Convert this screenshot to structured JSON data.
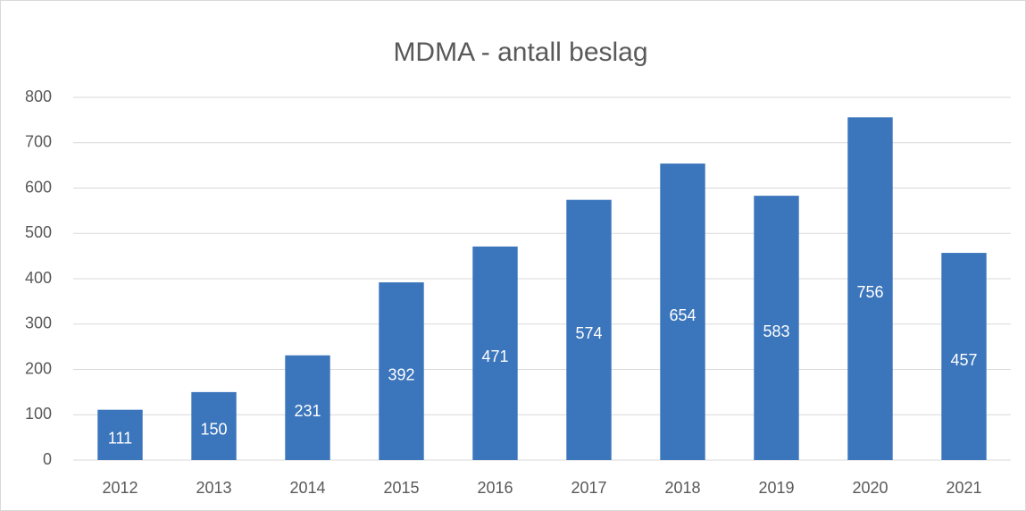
{
  "chart_data": {
    "type": "bar",
    "title": "MDMA - antall beslag",
    "categories": [
      "2012",
      "2013",
      "2014",
      "2015",
      "2016",
      "2017",
      "2018",
      "2019",
      "2020",
      "2021"
    ],
    "values": [
      111,
      150,
      231,
      392,
      471,
      574,
      654,
      583,
      756,
      457
    ],
    "color": "#3b75bb",
    "ylim": [
      0,
      800
    ],
    "yticks": [
      0,
      100,
      200,
      300,
      400,
      500,
      600,
      700,
      800
    ],
    "grid": true
  }
}
